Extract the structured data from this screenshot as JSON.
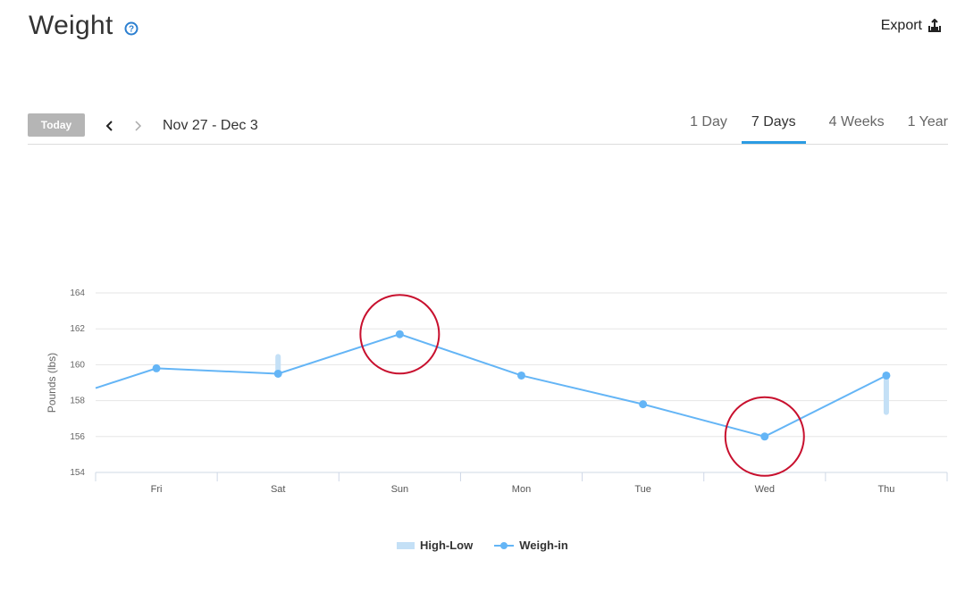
{
  "header": {
    "title": "Weight",
    "export_label": "Export"
  },
  "nav": {
    "today_label": "Today",
    "date_range": "Nov 27 - Dec 3",
    "tabs": [
      {
        "label": "1 Day",
        "active": false
      },
      {
        "label": "7 Days",
        "active": true
      },
      {
        "label": "4 Weeks",
        "active": false
      },
      {
        "label": "1 Year",
        "active": false
      }
    ]
  },
  "colors": {
    "accent": "#2b9be3",
    "line": "#64b5f6",
    "range_bar": "#c4e0f6",
    "annotation": "#c8102e"
  },
  "chart_data": {
    "type": "line",
    "ylabel": "Pounds (lbs)",
    "ylim": [
      154,
      164
    ],
    "yticks": [
      154,
      156,
      158,
      160,
      162,
      164
    ],
    "categories": [
      "Fri",
      "Sat",
      "Sun",
      "Mon",
      "Tue",
      "Wed",
      "Thu"
    ],
    "series": [
      {
        "name": "Weigh-in",
        "values": [
          159.8,
          159.5,
          161.7,
          159.4,
          157.8,
          156.0,
          159.4
        ],
        "entry_value": 158.7
      },
      {
        "name": "High-Low",
        "ranges": [
          null,
          [
            159.5,
            160.6
          ],
          null,
          null,
          null,
          null,
          [
            157.2,
            159.4
          ]
        ]
      }
    ],
    "annotations": [
      {
        "type": "circle",
        "category": "Sun",
        "value": 161.7
      },
      {
        "type": "circle",
        "category": "Wed",
        "value": 156.0
      }
    ],
    "legend": [
      "High-Low",
      "Weigh-in"
    ],
    "legend_position": "bottom",
    "grid": true
  }
}
